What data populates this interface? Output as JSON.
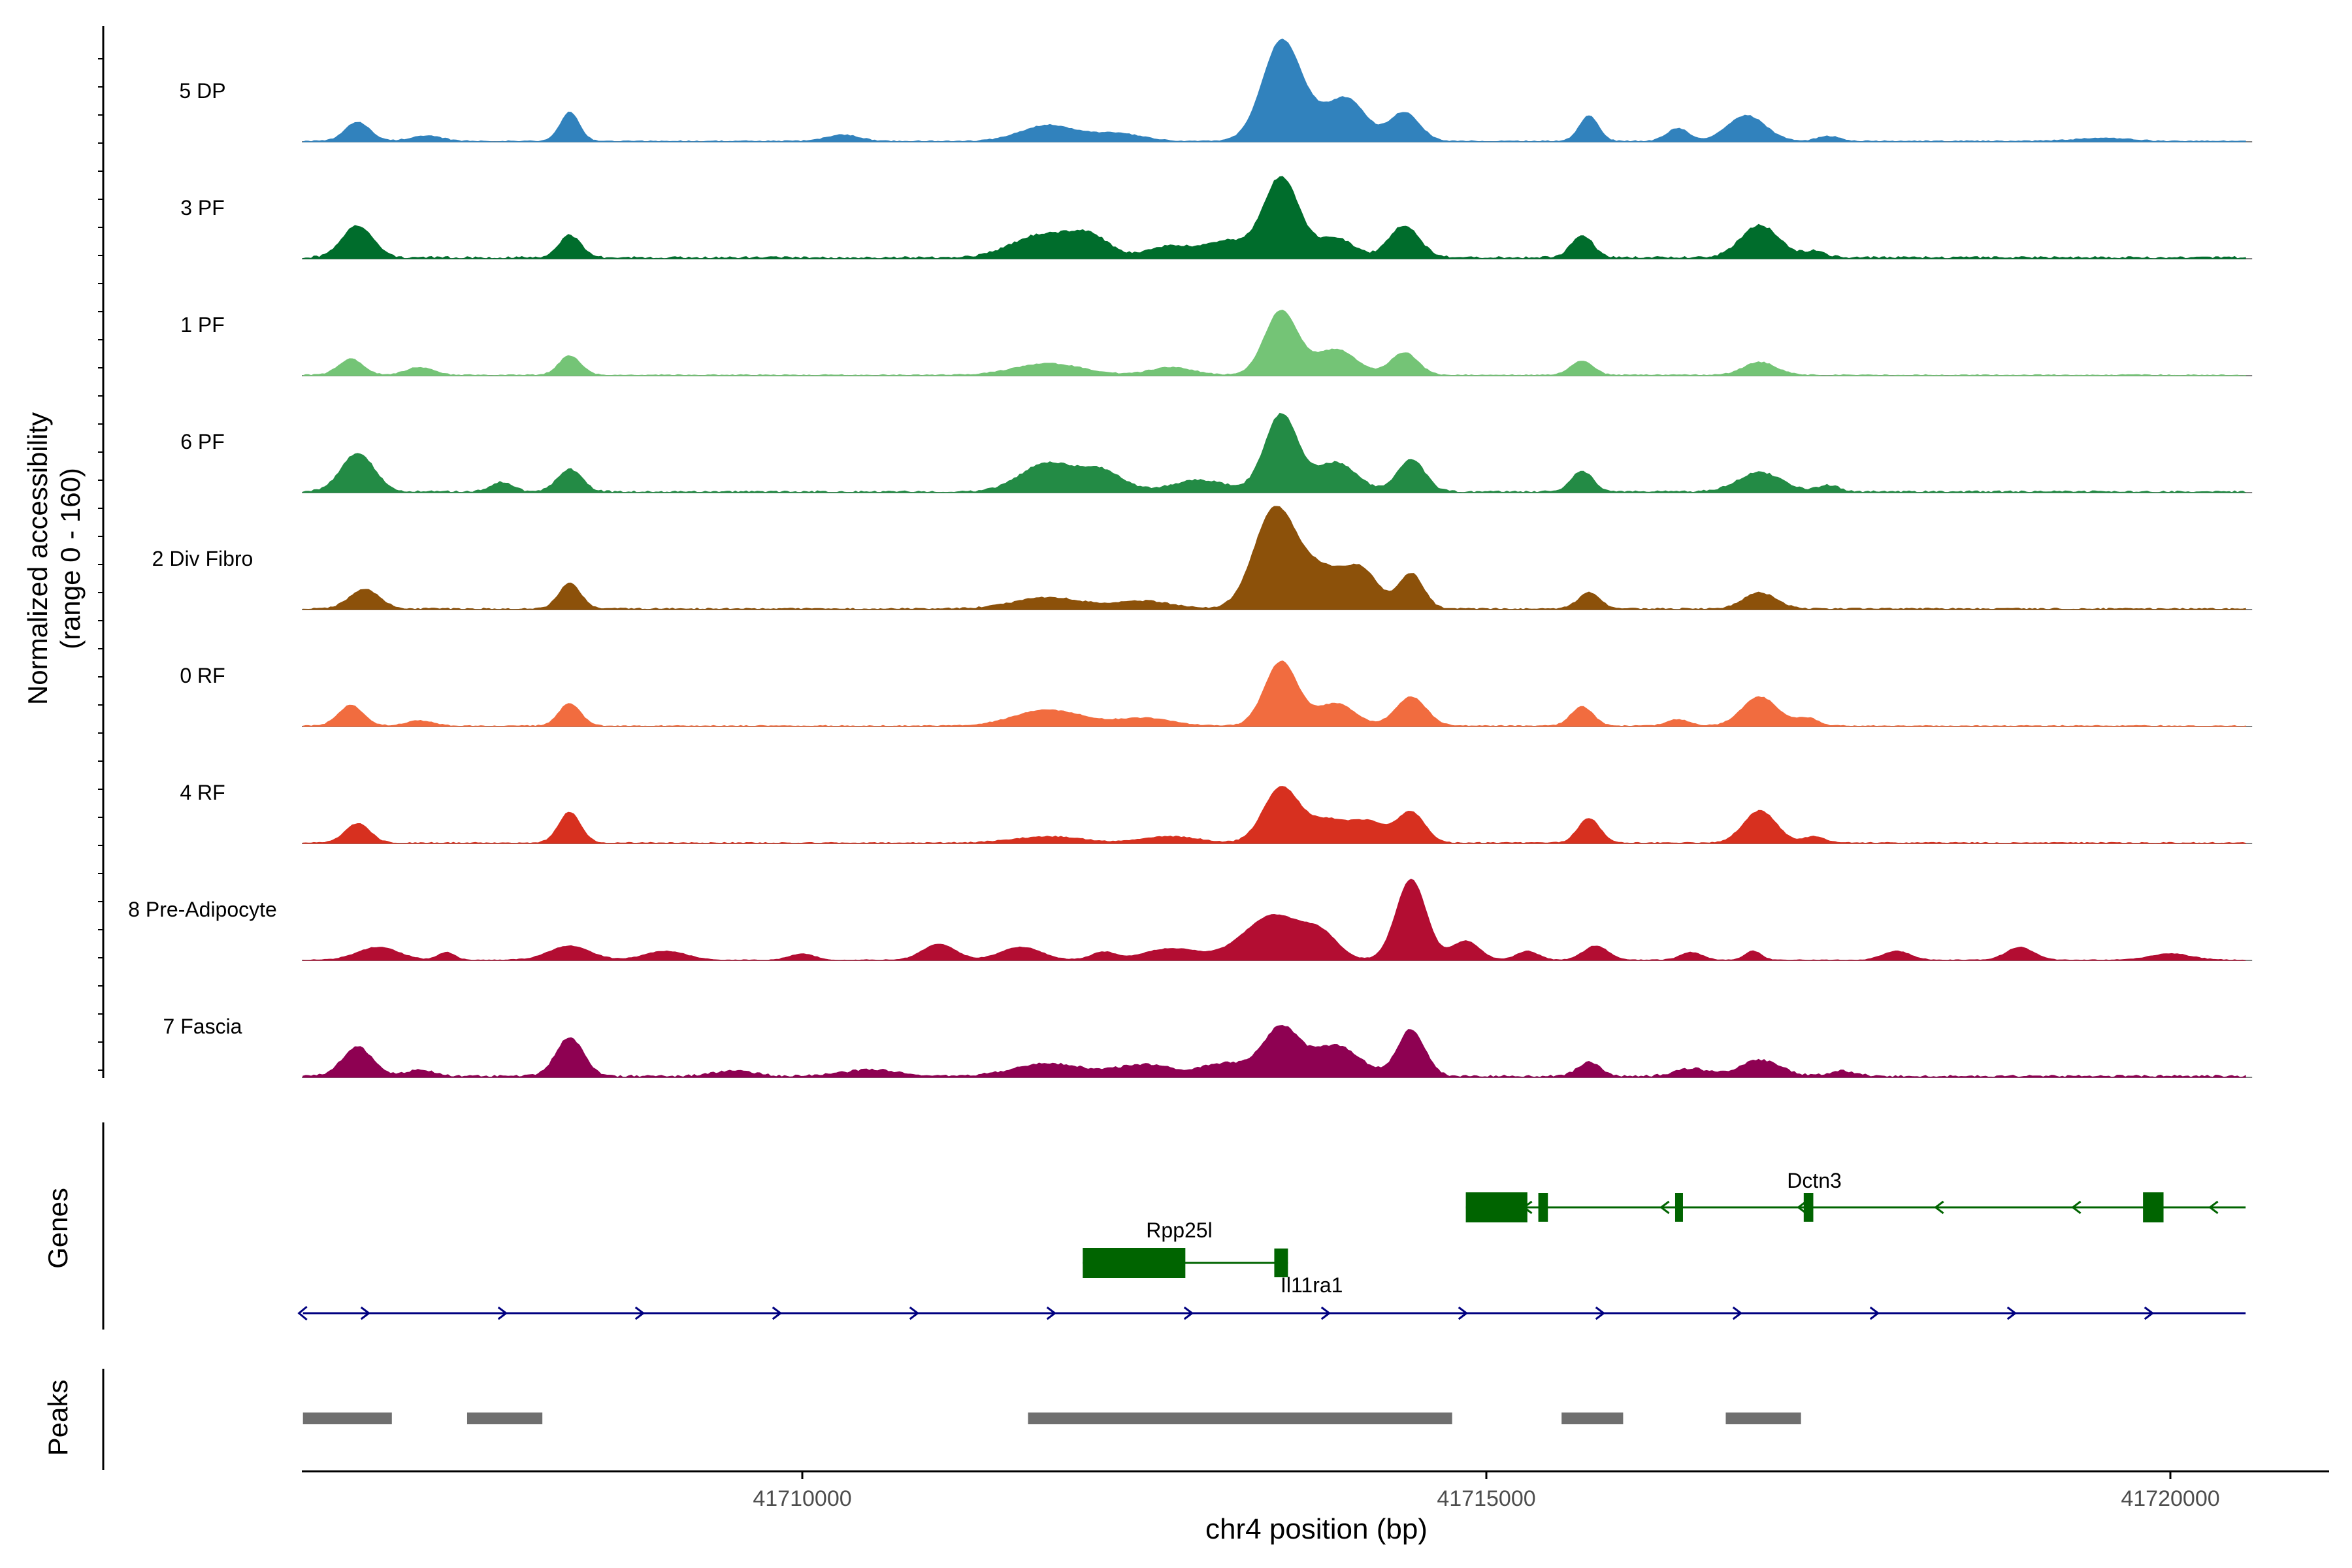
{
  "chart_data": {
    "type": "area",
    "title": "",
    "ylabel_line1": "Normalized accessibility",
    "ylabel_line2": "(range 0 - 160)",
    "genes_label": "Genes",
    "peaks_label": "Peaks",
    "xlabel": "chr4 position (bp)",
    "x_range": [
      41706300,
      41720600
    ],
    "y_range": [
      0,
      160
    ],
    "x_ticks": [
      41710000,
      41715000,
      41720000
    ],
    "x_tick_labels": [
      "41710000",
      "41715000",
      "41720000"
    ],
    "tracks": [
      {
        "name": "5 DP",
        "color": "#3182BD",
        "peaks": [
          [
            41706750,
            30,
            90
          ],
          [
            41707250,
            8,
            120
          ],
          [
            41708300,
            45,
            70
          ],
          [
            41710300,
            10,
            120
          ],
          [
            41711800,
            25,
            200
          ],
          [
            41712300,
            12,
            180
          ],
          [
            41713500,
            150,
            140
          ],
          [
            41713800,
            30,
            180
          ],
          [
            41714000,
            50,
            130
          ],
          [
            41714400,
            45,
            110
          ],
          [
            41715750,
            40,
            70
          ],
          [
            41716400,
            20,
            80
          ],
          [
            41716900,
            40,
            140
          ],
          [
            41717500,
            8,
            80
          ],
          [
            41719500,
            5,
            200
          ]
        ],
        "noise": 3
      },
      {
        "name": "3 PF",
        "color": "#006D2C",
        "peaks": [
          [
            41706750,
            50,
            110
          ],
          [
            41708300,
            35,
            80
          ],
          [
            41711750,
            35,
            220
          ],
          [
            41712100,
            30,
            150
          ],
          [
            41712700,
            18,
            160
          ],
          [
            41713500,
            125,
            130
          ],
          [
            41713100,
            25,
            150
          ],
          [
            41713900,
            30,
            130
          ],
          [
            41714400,
            50,
            110
          ],
          [
            41715700,
            35,
            80
          ],
          [
            41717000,
            50,
            140
          ],
          [
            41717400,
            10,
            80
          ]
        ],
        "noise": 6
      },
      {
        "name": "1 PF",
        "color": "#74C476",
        "peaks": [
          [
            41706700,
            25,
            90
          ],
          [
            41707200,
            12,
            100
          ],
          [
            41708300,
            30,
            80
          ],
          [
            41711800,
            18,
            250
          ],
          [
            41712700,
            12,
            160
          ],
          [
            41713500,
            100,
            120
          ],
          [
            41713900,
            40,
            150
          ],
          [
            41714400,
            35,
            100
          ],
          [
            41715700,
            22,
            80
          ],
          [
            41717000,
            20,
            120
          ]
        ],
        "noise": 3
      },
      {
        "name": "6 PF",
        "color": "#238B45",
        "peaks": [
          [
            41706750,
            60,
            120
          ],
          [
            41707800,
            15,
            80
          ],
          [
            41708300,
            35,
            90
          ],
          [
            41711800,
            45,
            200
          ],
          [
            41712200,
            30,
            150
          ],
          [
            41712900,
            18,
            200
          ],
          [
            41713500,
            120,
            120
          ],
          [
            41713900,
            45,
            150
          ],
          [
            41714450,
            50,
            100
          ],
          [
            41715700,
            32,
            80
          ],
          [
            41717000,
            30,
            160
          ],
          [
            41717500,
            10,
            80
          ]
        ],
        "noise": 5
      },
      {
        "name": "2 Div Fibro",
        "color": "#8C510A",
        "peaks": [
          [
            41706800,
            30,
            110
          ],
          [
            41708300,
            40,
            80
          ],
          [
            41711800,
            18,
            250
          ],
          [
            41712500,
            12,
            200
          ],
          [
            41713450,
            150,
            150
          ],
          [
            41713800,
            60,
            180
          ],
          [
            41714100,
            50,
            120
          ],
          [
            41714450,
            55,
            90
          ],
          [
            41715750,
            25,
            80
          ],
          [
            41717000,
            25,
            120
          ]
        ],
        "noise": 4
      },
      {
        "name": "0 RF",
        "color": "#F16C3F",
        "peaks": [
          [
            41706700,
            32,
            90
          ],
          [
            41707200,
            8,
            100
          ],
          [
            41708300,
            35,
            80
          ],
          [
            41711800,
            25,
            250
          ],
          [
            41712500,
            12,
            200
          ],
          [
            41713500,
            100,
            120
          ],
          [
            41713900,
            35,
            140
          ],
          [
            41714450,
            45,
            110
          ],
          [
            41715700,
            30,
            80
          ],
          [
            41716400,
            10,
            80
          ],
          [
            41717000,
            45,
            130
          ],
          [
            41717350,
            12,
            80
          ]
        ],
        "noise": 3
      },
      {
        "name": "4 RF",
        "color": "#D7301F",
        "peaks": [
          [
            41706750,
            30,
            90
          ],
          [
            41708300,
            48,
            80
          ],
          [
            41711800,
            10,
            250
          ],
          [
            41712700,
            10,
            200
          ],
          [
            41713500,
            85,
            130
          ],
          [
            41713850,
            35,
            150
          ],
          [
            41714150,
            30,
            120
          ],
          [
            41714450,
            48,
            100
          ],
          [
            41715750,
            38,
            80
          ],
          [
            41717000,
            50,
            120
          ],
          [
            41717400,
            10,
            80
          ]
        ],
        "noise": 3
      },
      {
        "name": "8 Pre-Adipocyte",
        "color": "#B30D32",
        "peaks": [
          [
            41706900,
            20,
            150
          ],
          [
            41707400,
            12,
            60
          ],
          [
            41708300,
            22,
            150
          ],
          [
            41709000,
            14,
            150
          ],
          [
            41710000,
            10,
            90
          ],
          [
            41711000,
            25,
            120
          ],
          [
            41711600,
            20,
            150
          ],
          [
            41712200,
            12,
            90
          ],
          [
            41712700,
            18,
            200
          ],
          [
            41713450,
            70,
            220
          ],
          [
            41713800,
            30,
            120
          ],
          [
            41714450,
            125,
            110
          ],
          [
            41714850,
            30,
            100
          ],
          [
            41715300,
            14,
            80
          ],
          [
            41715800,
            22,
            90
          ],
          [
            41716500,
            12,
            80
          ],
          [
            41716950,
            14,
            60
          ],
          [
            41718000,
            14,
            100
          ],
          [
            41718900,
            20,
            100
          ],
          [
            41720000,
            10,
            150
          ]
        ],
        "noise": 2
      },
      {
        "name": "7 Fascia",
        "color": "#8E0152",
        "peaks": [
          [
            41706750,
            45,
            110
          ],
          [
            41707200,
            10,
            100
          ],
          [
            41708300,
            60,
            100
          ],
          [
            41709500,
            8,
            150
          ],
          [
            41710500,
            10,
            200
          ],
          [
            41711800,
            20,
            250
          ],
          [
            41712500,
            18,
            200
          ],
          [
            41713100,
            20,
            180
          ],
          [
            41713500,
            75,
            130
          ],
          [
            41713900,
            48,
            170
          ],
          [
            41714450,
            72,
            100
          ],
          [
            41715750,
            22,
            80
          ],
          [
            41716500,
            12,
            120
          ],
          [
            41717000,
            25,
            150
          ],
          [
            41717600,
            8,
            100
          ]
        ],
        "noise": 6
      }
    ],
    "genes": [
      {
        "name": "Dctn3",
        "strand": "-",
        "start": 41714850,
        "end": 41720550,
        "exons": [
          [
            41714850,
            41715300,
            "wide"
          ],
          [
            41715380,
            41715450,
            "narrow"
          ],
          [
            41716380,
            41716430,
            "narrow"
          ],
          [
            41717320,
            41717390,
            "narrow"
          ],
          [
            41719800,
            41719950,
            "wide"
          ]
        ]
      },
      {
        "name": "Rpp25l",
        "strand": "-",
        "start": 41712050,
        "end": 41713550,
        "exons": [
          [
            41712050,
            41712800,
            "wide"
          ],
          [
            41713450,
            41713550,
            "narrow"
          ]
        ]
      },
      {
        "name": "Il11ra1",
        "strand": "+",
        "start": 41706350,
        "end": 41720550,
        "exons": []
      }
    ],
    "peak_regions": [
      [
        41706350,
        41707000
      ],
      [
        41707550,
        41708100
      ],
      [
        41711650,
        41714750
      ],
      [
        41715550,
        41716000
      ],
      [
        41716750,
        41717300
      ]
    ]
  }
}
